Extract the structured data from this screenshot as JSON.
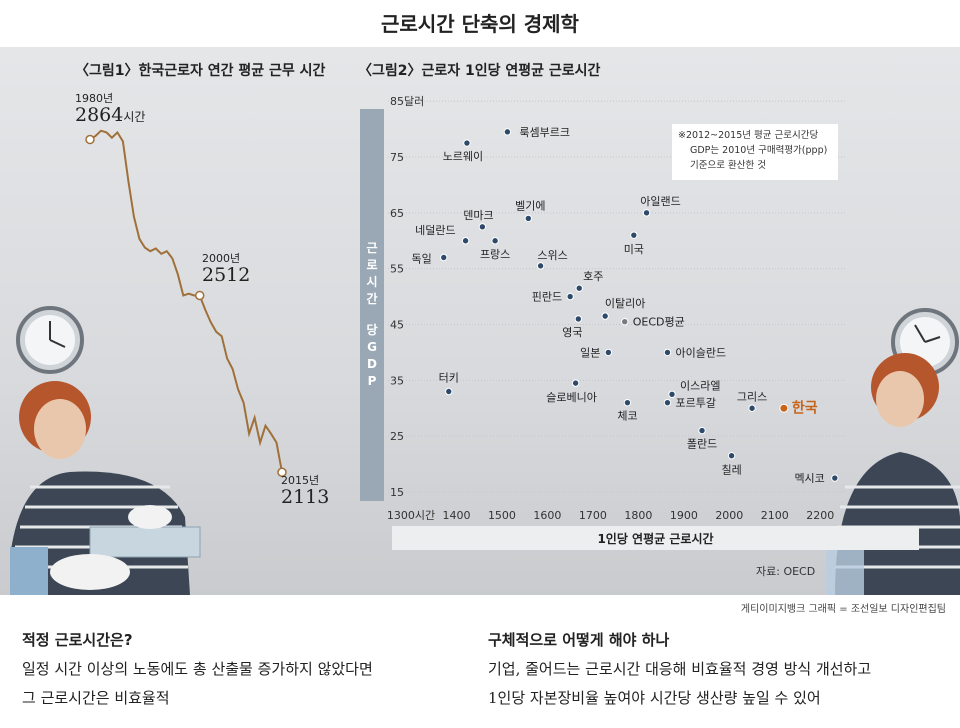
{
  "title": "근로시간 단축의 경제학",
  "chart_data": [
    {
      "type": "line",
      "title": "〈그림1〉한국근로자 연간 평균 근무 시간",
      "x": [
        1980,
        1981,
        1982,
        1983,
        1984,
        1985,
        1986,
        1987,
        1988,
        1989,
        1990,
        1991,
        1992,
        1993,
        1994,
        1995,
        1996,
        1997,
        1998,
        1999,
        2000,
        2001,
        2002,
        2003,
        2004,
        2005,
        2006,
        2007,
        2008,
        2009,
        2010,
        2011,
        2012,
        2013,
        2014,
        2015
      ],
      "y": [
        2864,
        2872,
        2884,
        2880,
        2868,
        2880,
        2860,
        2770,
        2690,
        2640,
        2620,
        2612,
        2618,
        2606,
        2612,
        2596,
        2560,
        2512,
        2516,
        2512,
        2512,
        2480,
        2452,
        2430,
        2420,
        2370,
        2346,
        2300,
        2270,
        2200,
        2236,
        2180,
        2218,
        2200,
        2180,
        2113
      ],
      "annotations": [
        {
          "year_label": "1980년",
          "value": "2864",
          "unit": "시간"
        },
        {
          "year_label": "2000년",
          "value": "2512",
          "unit": ""
        },
        {
          "year_label": "2015년",
          "value": "2113",
          "unit": ""
        }
      ]
    },
    {
      "type": "scatter",
      "title": "〈그림2〉근로자 1인당 연평균 근로시간",
      "xlabel": "1인당 연평균 근로시간",
      "ylabel": "근로시간당 GDP",
      "y_top_label": "85달러",
      "xlim": [
        1300,
        2250
      ],
      "ylim": [
        12,
        85
      ],
      "xticks": [
        "1300시간",
        "1400",
        "1500",
        "1600",
        "1700",
        "1800",
        "1900",
        "2000",
        "2100",
        "2200"
      ],
      "yticks": [
        "15",
        "25",
        "35",
        "45",
        "55",
        "65",
        "75"
      ],
      "note": [
        "※2012~2015년 평균 근로시간당",
        "GDP는 2010년 구매력평가(ppp)",
        "기준으로 환산한 것"
      ],
      "points": [
        {
          "name": "룩셈부르크",
          "x": 1512,
          "y": 79.5,
          "lx": 12,
          "ly": 0,
          "anchor": "start"
        },
        {
          "name": "노르웨이",
          "x": 1423,
          "y": 77.5,
          "lx": -4,
          "ly": 13,
          "anchor": "middle"
        },
        {
          "name": "네덜란드",
          "x": 1420,
          "y": 60,
          "lx": -10,
          "ly": -11,
          "anchor": "end"
        },
        {
          "name": "덴마크",
          "x": 1457,
          "y": 62.5,
          "lx": -4,
          "ly": -12,
          "anchor": "middle"
        },
        {
          "name": "벨기에",
          "x": 1558,
          "y": 64,
          "lx": 2,
          "ly": -13,
          "anchor": "middle"
        },
        {
          "name": "독일",
          "x": 1372,
          "y": 57,
          "lx": -12,
          "ly": 1,
          "anchor": "end"
        },
        {
          "name": "프랑스",
          "x": 1485,
          "y": 60,
          "lx": 0,
          "ly": 13,
          "anchor": "middle"
        },
        {
          "name": "스위스",
          "x": 1585,
          "y": 55.5,
          "lx": 12,
          "ly": -11,
          "anchor": "middle"
        },
        {
          "name": "아일랜드",
          "x": 1818,
          "y": 65,
          "lx": 14,
          "ly": -12,
          "anchor": "middle"
        },
        {
          "name": "미국",
          "x": 1790,
          "y": 61,
          "lx": 0,
          "ly": 14,
          "anchor": "middle"
        },
        {
          "name": "호주",
          "x": 1670,
          "y": 51.5,
          "lx": 14,
          "ly": -12,
          "anchor": "middle"
        },
        {
          "name": "핀란드",
          "x": 1650,
          "y": 50,
          "lx": -8,
          "ly": 0,
          "anchor": "end"
        },
        {
          "name": "이탈리아",
          "x": 1727,
          "y": 46.5,
          "lx": 20,
          "ly": -13,
          "anchor": "middle"
        },
        {
          "name": "OECD평균",
          "x": 1770,
          "y": 45.5,
          "lx": 8,
          "ly": 0,
          "anchor": "start",
          "gray": true
        },
        {
          "name": "영국",
          "x": 1668,
          "y": 46,
          "lx": -6,
          "ly": 13,
          "anchor": "middle"
        },
        {
          "name": "일본",
          "x": 1734,
          "y": 40,
          "lx": -8,
          "ly": 0,
          "anchor": "end"
        },
        {
          "name": "아이슬란드",
          "x": 1864,
          "y": 40,
          "lx": 8,
          "ly": 0,
          "anchor": "start"
        },
        {
          "name": "터키",
          "x": 1383,
          "y": 33,
          "lx": 0,
          "ly": -14,
          "anchor": "middle"
        },
        {
          "name": "슬로베니아",
          "x": 1662,
          "y": 34.5,
          "lx": -4,
          "ly": 14,
          "anchor": "middle"
        },
        {
          "name": "이스라엘",
          "x": 1874,
          "y": 32.5,
          "lx": 8,
          "ly": -9,
          "anchor": "start"
        },
        {
          "name": "체코",
          "x": 1776,
          "y": 31,
          "lx": 0,
          "ly": 13,
          "anchor": "middle"
        },
        {
          "name": "포르투갈",
          "x": 1864,
          "y": 31,
          "lx": 8,
          "ly": 0,
          "anchor": "start"
        },
        {
          "name": "그리스",
          "x": 2050,
          "y": 30,
          "lx": 0,
          "ly": -12,
          "anchor": "middle"
        },
        {
          "name": "한국",
          "x": 2120,
          "y": 30,
          "lx": 8,
          "ly": 0,
          "anchor": "start",
          "highlight": true
        },
        {
          "name": "폴란드",
          "x": 1940,
          "y": 26,
          "lx": 0,
          "ly": 13,
          "anchor": "middle"
        },
        {
          "name": "칠레",
          "x": 2005,
          "y": 21.5,
          "lx": 0,
          "ly": 14,
          "anchor": "middle"
        },
        {
          "name": "멕시코",
          "x": 2232,
          "y": 17.5,
          "lx": -10,
          "ly": 0,
          "anchor": "end"
        }
      ]
    }
  ],
  "source": "자료: OECD",
  "credit": "게티이미지뱅크   그래픽 = 조선일보 디자인편집팀",
  "section_left": {
    "heading": "적정 근로시간은?",
    "lines": [
      "일정 시간 이상의 노동에도 총 산출물 증가하지 않았다면",
      "그 근로시간은 비효율적"
    ]
  },
  "section_right": {
    "heading": "구체적으로 어떻게 해야 하나",
    "lines": [
      "기업, 줄어드는 근로시간 대응해 비효율적 경영 방식 개선하고",
      "1인당 자본장비율 높여야 시간당 생산량 높일 수 있어"
    ]
  },
  "colors": {
    "line": "#a0703a",
    "dot": "#2e4a6a",
    "highlight": "#c8641a",
    "gray_dot": "#7a7a7a",
    "ylabel_bar": "#9aa8b6"
  }
}
